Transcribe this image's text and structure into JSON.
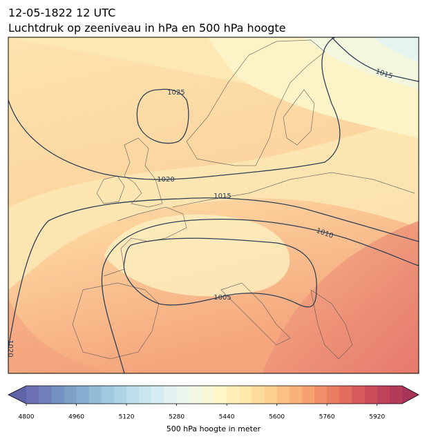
{
  "header": {
    "time": "12-05-1822 12 UTC",
    "title": "Luchtdruk op zeeniveau in hPa en 500 hPa hoogte"
  },
  "map": {
    "contour_labels": [
      1025,
      1020,
      1015,
      1010,
      1005,
      1015,
      1020
    ]
  },
  "colorbar": {
    "label": "500 hPa hoogte in meter",
    "vlim": [
      4800,
      6000
    ],
    "ticks": [
      4800,
      4960,
      5120,
      5280,
      5440,
      5600,
      5760,
      5920
    ],
    "colors": [
      "#6b70b5",
      "#6f80bb",
      "#7590c2",
      "#7d9fc8",
      "#87aed0",
      "#93bbd7",
      "#a0c8de",
      "#aed3e4",
      "#bcdde9",
      "#c9e5ee",
      "#d6ecf2",
      "#e2f2f1",
      "#ecf6ee",
      "#f3f8e4",
      "#f8f8d6",
      "#fdf6c6",
      "#fef0b8",
      "#fee8aa",
      "#fedd9c",
      "#fdd08f",
      "#fcc283",
      "#f9b279",
      "#f6a170",
      "#f19068",
      "#ea7e62",
      "#e26c5e",
      "#d85b5c",
      "#cc4d5b",
      "#c0435b",
      "#b23b5a"
    ],
    "extend_colors": [
      "#5f63a8",
      "#a83459"
    ]
  }
}
